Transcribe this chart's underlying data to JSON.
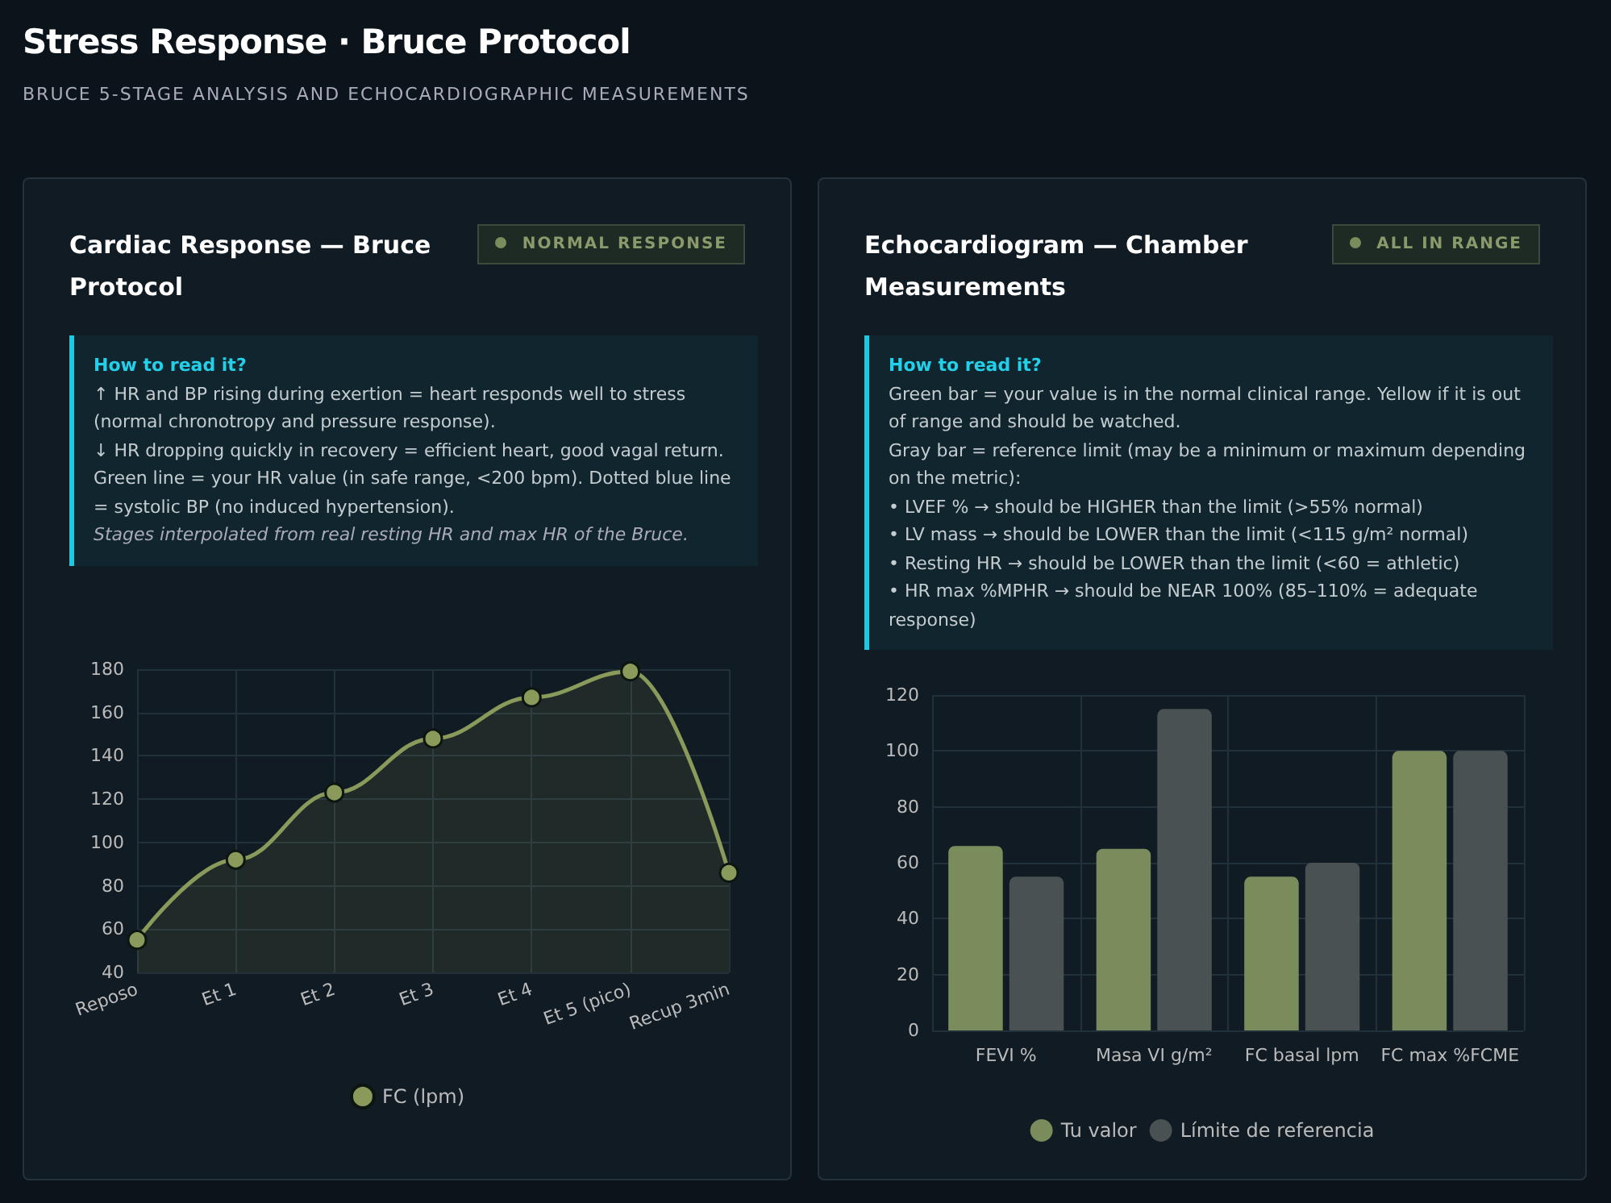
{
  "chart_data": [
    {
      "type": "other",
      "title": "Stress Response · Bruce Protocol",
      "subtitle": "BRUCE 5-STAGE ANALYSIS AND ECHOCARDIOGRAPHIC MEASUREMENTS"
    },
    {
      "type": "area",
      "title": "Cardiac Response — Bruce Protocol",
      "annotations": [
        "NORMAL RESPONSE",
        "How to read it?",
        "↑ HR and BP rising during exertion = heart responds well to stress (normal chronotropy and pressure response).",
        "↓ HR dropping quickly in recovery = efficient heart, good vagal return.",
        "Green line = your HR value (in safe range, <200 bpm). Dotted blue line = systolic BP (no induced hypertension).",
        "Stages interpolated from real resting HR and max HR of the Bruce."
      ],
      "categories": [
        "Reposo",
        "Et 1",
        "Et 2",
        "Et 3",
        "Et 4",
        "Et 5 (pico)",
        "Recup 3min"
      ],
      "series": [
        {
          "name": "FC (lpm)",
          "color": "#8a9a5b",
          "values": [
            55,
            92,
            123,
            148,
            167,
            179,
            86
          ]
        }
      ],
      "ylim": [
        40,
        180
      ],
      "yticks": [
        40,
        60,
        80,
        100,
        120,
        140,
        160,
        180
      ],
      "grid": true,
      "legend": "bottom",
      "marker": "circle"
    },
    {
      "type": "bar",
      "title": "Echocardiogram — Chamber Measurements",
      "annotations": [
        "ALL IN RANGE",
        "How to read it?",
        "Green bar = your value is in the normal clinical range. Yellow if it is out of range and should be watched.",
        "Gray bar = reference limit (may be a minimum or maximum depending on the metric):",
        "• LVEF % → should be HIGHER than the limit (>55% normal)",
        "• LV mass → should be LOWER than the limit (<115 g/m² normal)",
        "• Resting HR → should be LOWER than the limit (<60 = athletic)",
        "• HR max %MPHR → should be NEAR 100% (85–110% = adequate response)"
      ],
      "categories": [
        "FEVI %",
        "Masa VI g/m²",
        "FC basal lpm",
        "FC max %FCME"
      ],
      "series": [
        {
          "name": "Tu valor",
          "color": "#7b8c5c",
          "values": [
            66,
            65,
            55,
            100
          ]
        },
        {
          "name": "Límite de referencia",
          "color": "#4a5152",
          "values": [
            55,
            115,
            60,
            100
          ]
        }
      ],
      "ylim": [
        0,
        120
      ],
      "yticks": [
        0,
        20,
        40,
        60,
        80,
        100,
        120
      ],
      "grid": true,
      "legend": "bottom"
    }
  ]
}
